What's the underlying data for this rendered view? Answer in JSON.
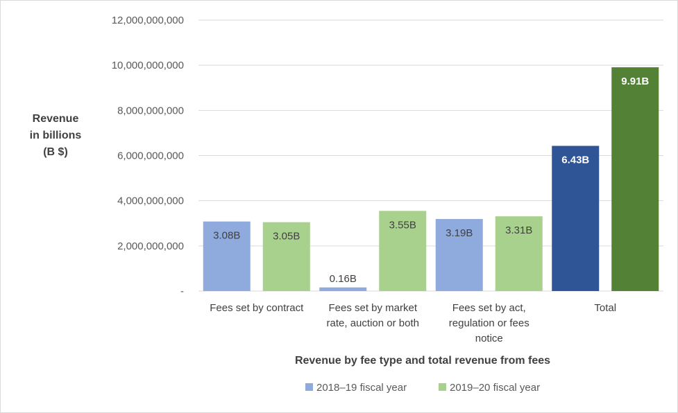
{
  "chart_data": {
    "type": "bar",
    "xlabel": "Revenue by fee type and total revenue from fees",
    "ylabel_lines": [
      "Revenue",
      "in billions",
      "(B $)"
    ],
    "ylim": [
      0,
      12000000000
    ],
    "yticks": [
      0,
      2000000000,
      4000000000,
      6000000000,
      8000000000,
      10000000000,
      12000000000
    ],
    "ytick_labels": [
      "-",
      "2,000,000,000",
      "4,000,000,000",
      "6,000,000,000",
      "8,000,000,000",
      "10,000,000,000",
      "12,000,000,000"
    ],
    "grid": true,
    "legend_position": "bottom",
    "categories": [
      [
        "Fees set by contract"
      ],
      [
        "Fees set by market",
        "rate, auction or both"
      ],
      [
        "Fees set by act,",
        "regulation or fees",
        "notice"
      ],
      [
        "Total"
      ]
    ],
    "series": [
      {
        "name": "2018–19 fiscal year",
        "color": "#8faadc",
        "values": [
          3080000000,
          160000000,
          3190000000,
          6430000000
        ],
        "labels": [
          "3.08B",
          "0.16B",
          "3.19B",
          "6.43B"
        ],
        "label_colors": [
          "#404040",
          "#404040",
          "#404040",
          "#ffffff"
        ],
        "overrides": [
          null,
          null,
          null,
          "#2f5597"
        ]
      },
      {
        "name": "2019–20 fiscal year",
        "color": "#a9d18e",
        "values": [
          3050000000,
          3550000000,
          3310000000,
          9910000000
        ],
        "labels": [
          "3.05B",
          "3.55B",
          "3.31B",
          "9.91B"
        ],
        "label_colors": [
          "#404040",
          "#404040",
          "#404040",
          "#ffffff"
        ],
        "overrides": [
          null,
          null,
          null,
          "#538135"
        ]
      }
    ]
  }
}
